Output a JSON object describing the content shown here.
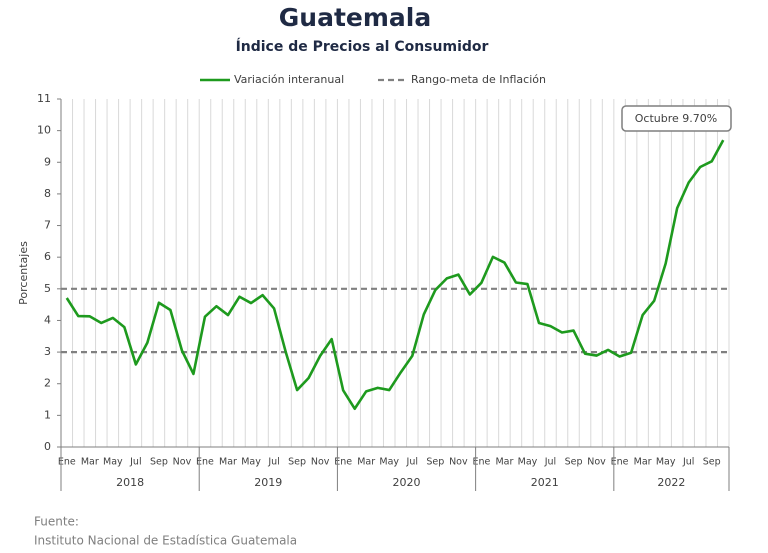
{
  "chart_data": {
    "type": "line",
    "title": "Guatemala",
    "subtitle": "Índice de Precios al Consumidor",
    "y_label": "Porcentajes",
    "categories": [
      "Ene",
      null,
      "Mar",
      null,
      "May",
      null,
      "Jul",
      null,
      "Sep",
      null,
      "Nov",
      null,
      "Ene",
      null,
      "Mar",
      null,
      "May",
      null,
      "Jul",
      null,
      "Sep",
      null,
      "Nov",
      null,
      "Ene",
      null,
      "Mar",
      null,
      "May",
      null,
      "Jul",
      null,
      "Sep",
      null,
      "Nov",
      null,
      "Ene",
      null,
      "Mar",
      null,
      "May",
      null,
      "Jul",
      null,
      "Sep",
      null,
      "Nov",
      null,
      "Ene",
      null,
      "Mar",
      null,
      "May",
      null,
      "Jul",
      null,
      "Sep",
      null
    ],
    "years": [
      "2018",
      "2019",
      "2020",
      "2021",
      "2022"
    ],
    "series": [
      {
        "name": "Variación interanual",
        "color": "#1e9a1e",
        "values": [
          4.71,
          4.14,
          4.13,
          3.92,
          4.08,
          3.79,
          2.61,
          3.3,
          4.56,
          4.33,
          3.05,
          2.31,
          4.12,
          4.45,
          4.17,
          4.75,
          4.55,
          4.8,
          4.38,
          3.02,
          1.8,
          2.18,
          2.88,
          3.41,
          1.79,
          1.21,
          1.76,
          1.87,
          1.8,
          2.36,
          2.88,
          4.19,
          4.96,
          5.33,
          5.45,
          4.82,
          5.19,
          6.01,
          5.83,
          5.2,
          5.15,
          3.92,
          3.82,
          3.62,
          3.68,
          2.95,
          2.89,
          3.07,
          2.86,
          2.98,
          4.17,
          4.62,
          5.8,
          7.55,
          8.36,
          8.85,
          9.03,
          9.7
        ]
      }
    ],
    "target_range": {
      "name": "Rango-meta de Inflación",
      "color": "#808080",
      "values": [
        3,
        5
      ]
    },
    "annotation": "Octubre 9.70%",
    "ylim": [
      0,
      11
    ],
    "yticks": [
      0,
      1,
      2,
      3,
      4,
      5,
      6,
      7,
      8,
      9,
      10,
      11
    ],
    "grid": "vertical"
  },
  "source": {
    "label": "Fuente:",
    "text": "Instituto Nacional de Estadística Guatemala"
  }
}
